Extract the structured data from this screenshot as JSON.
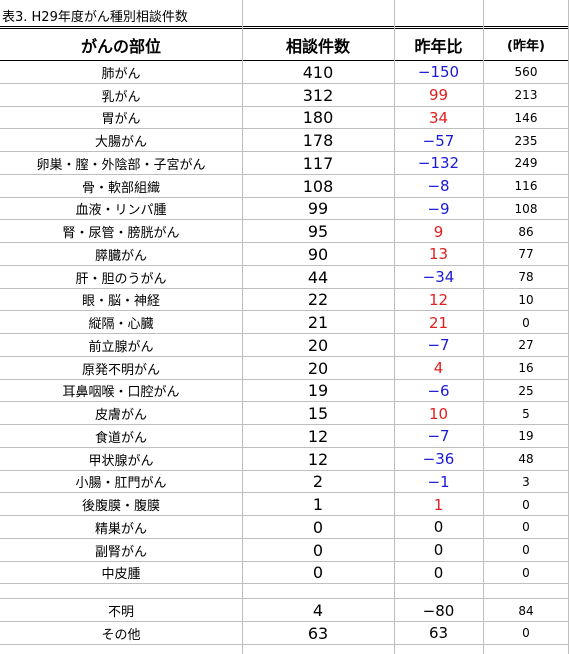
{
  "title": "表3. H29年度がん種別相談件数",
  "headers": {
    "site": "がんの部位",
    "count": "相談件数",
    "diff": "昨年比",
    "prev": "(昨年)"
  },
  "rows": [
    {
      "site": "肺がん",
      "count": "410",
      "diff": "−150",
      "prev": "560",
      "tone": "neg"
    },
    {
      "site": "乳がん",
      "count": "312",
      "diff": "99",
      "prev": "213",
      "tone": "pos"
    },
    {
      "site": "胃がん",
      "count": "180",
      "diff": "34",
      "prev": "146",
      "tone": "pos"
    },
    {
      "site": "大腸がん",
      "count": "178",
      "diff": "−57",
      "prev": "235",
      "tone": "neg"
    },
    {
      "site": "卵巣・膣・外陰部・子宮がん",
      "count": "117",
      "diff": "−132",
      "prev": "249",
      "tone": "neg"
    },
    {
      "site": "骨・軟部組織",
      "count": "108",
      "diff": "−8",
      "prev": "116",
      "tone": "neg"
    },
    {
      "site": "血液・リンパ腫",
      "count": "99",
      "diff": "−9",
      "prev": "108",
      "tone": "neg"
    },
    {
      "site": "腎・尿管・膀胱がん",
      "count": "95",
      "diff": "9",
      "prev": "86",
      "tone": "pos"
    },
    {
      "site": "膵臓がん",
      "count": "90",
      "diff": "13",
      "prev": "77",
      "tone": "pos"
    },
    {
      "site": "肝・胆のうがん",
      "count": "44",
      "diff": "−34",
      "prev": "78",
      "tone": "neg"
    },
    {
      "site": "眼・脳・神経",
      "count": "22",
      "diff": "12",
      "prev": "10",
      "tone": "pos"
    },
    {
      "site": "縦隔・心臓",
      "count": "21",
      "diff": "21",
      "prev": "0",
      "tone": "pos"
    },
    {
      "site": "前立腺がん",
      "count": "20",
      "diff": "−7",
      "prev": "27",
      "tone": "neg"
    },
    {
      "site": "原発不明がん",
      "count": "20",
      "diff": "4",
      "prev": "16",
      "tone": "pos"
    },
    {
      "site": "耳鼻咽喉・口腔がん",
      "count": "19",
      "diff": "−6",
      "prev": "25",
      "tone": "neg"
    },
    {
      "site": "皮膚がん",
      "count": "15",
      "diff": "10",
      "prev": "5",
      "tone": "pos"
    },
    {
      "site": "食道がん",
      "count": "12",
      "diff": "−7",
      "prev": "19",
      "tone": "neg"
    },
    {
      "site": "甲状腺がん",
      "count": "12",
      "diff": "−36",
      "prev": "48",
      "tone": "neg"
    },
    {
      "site": "小腸・肛門がん",
      "count": "2",
      "diff": "−1",
      "prev": "3",
      "tone": "neg"
    },
    {
      "site": "後腹膜・腹膜",
      "count": "1",
      "diff": "1",
      "prev": "0",
      "tone": "pos"
    },
    {
      "site": "精巣がん",
      "count": "0",
      "diff": "0",
      "prev": "0",
      "tone": "zero"
    },
    {
      "site": "副腎がん",
      "count": "0",
      "diff": "0",
      "prev": "0",
      "tone": "zero"
    },
    {
      "site": "中皮腫",
      "count": "0",
      "diff": "0",
      "prev": "0",
      "tone": "zero"
    }
  ],
  "extra_rows": [
    {
      "site": "不明",
      "count": "4",
      "diff": "−80",
      "prev": "84",
      "tone": "zero"
    },
    {
      "site": "その他",
      "count": "63",
      "diff": "63",
      "prev": "0",
      "tone": "zero"
    }
  ],
  "colors": {
    "negative": "#1a1ad6",
    "positive": "#e02020",
    "gridline": "#bfbfbf"
  }
}
